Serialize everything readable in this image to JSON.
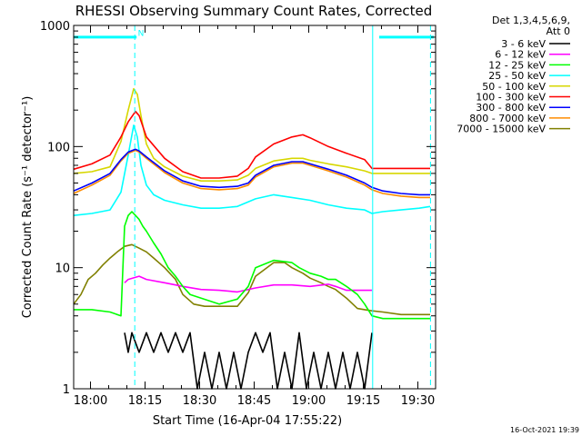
{
  "chart_data": {
    "type": "line",
    "title": "RHESSI Observing Summary Count Rates, Corrected",
    "xlabel": "Start Time (16-Apr-04 17:55:22)",
    "ylabel": "Corrected Count Rate (s⁻¹ detector⁻¹)",
    "x_unit": "minutes from 17:55:22",
    "xlim": [
      0,
      99.5
    ],
    "ylim": [
      1,
      1000
    ],
    "yscale": "log",
    "x_ticks": [
      {
        "label": "18:00",
        "x": 4.63
      },
      {
        "label": "18:15",
        "x": 19.63
      },
      {
        "label": "18:30",
        "x": 34.63
      },
      {
        "label": "18:45",
        "x": 49.63
      },
      {
        "label": "19:00",
        "x": 64.63
      },
      {
        "label": "19:15",
        "x": 79.63
      },
      {
        "label": "19:30",
        "x": 94.63
      }
    ],
    "y_ticks": [
      {
        "label": "1",
        "y": 1
      },
      {
        "label": "10",
        "y": 10
      },
      {
        "label": "100",
        "y": 100
      },
      {
        "label": "1000",
        "y": 1000
      }
    ],
    "legend": {
      "position": "right",
      "header": [
        "Det 1,3,4,5,6,9,",
        "Att 0"
      ],
      "entries": [
        {
          "label": "3 - 6 keV",
          "color": "#000000"
        },
        {
          "label": "6 - 12 keV",
          "color": "#ff00ff"
        },
        {
          "label": "12 - 25 keV",
          "color": "#00ff00"
        },
        {
          "label": "25 - 50 keV",
          "color": "#00ffff"
        },
        {
          "label": "50 - 100 keV",
          "color": "#d7d700"
        },
        {
          "label": "100 - 300 keV",
          "color": "#ff0000"
        },
        {
          "label": "300 - 800 keV",
          "color": "#0000ff"
        },
        {
          "label": "800 - 7000 keV",
          "color": "#ff8c00"
        },
        {
          "label": "7000 - 15000 keV",
          "color": "#808000"
        }
      ]
    },
    "series": [
      {
        "label": "100 - 300 keV",
        "color": "#ff0000",
        "x": [
          0,
          5,
          10,
          13,
          15,
          17,
          18,
          20,
          25,
          30,
          35,
          40,
          45,
          48,
          50,
          55,
          60,
          63,
          65,
          70,
          75,
          80,
          82,
          85,
          90,
          95,
          98
        ],
        "y": [
          65,
          72,
          85,
          120,
          160,
          195,
          180,
          120,
          80,
          62,
          55,
          55,
          57,
          66,
          82,
          105,
          120,
          125,
          118,
          100,
          88,
          78,
          66,
          66,
          66,
          66,
          66
        ]
      },
      {
        "label": "50 - 100 keV",
        "color": "#d7d700",
        "x": [
          0,
          5,
          10,
          13,
          15,
          16.5,
          17.5,
          18.5,
          20,
          22,
          25,
          30,
          35,
          40,
          45,
          48,
          50,
          55,
          60,
          63,
          65,
          70,
          75,
          80,
          82,
          85,
          90,
          95,
          98
        ],
        "y": [
          60,
          62,
          68,
          110,
          200,
          300,
          270,
          180,
          105,
          80,
          68,
          57,
          52,
          52,
          53,
          58,
          66,
          76,
          80,
          80,
          77,
          72,
          68,
          63,
          60,
          60,
          60,
          60,
          60
        ]
      },
      {
        "label": "300 - 800 keV",
        "color": "#0000ff",
        "x": [
          0,
          5,
          10,
          13,
          15,
          17,
          18,
          20,
          25,
          30,
          35,
          40,
          45,
          48,
          50,
          55,
          60,
          63,
          65,
          70,
          75,
          80,
          82,
          85,
          90,
          95,
          98
        ],
        "y": [
          43,
          50,
          60,
          78,
          90,
          95,
          92,
          82,
          63,
          52,
          47,
          46,
          47,
          50,
          58,
          70,
          75,
          75,
          72,
          65,
          58,
          50,
          46,
          43,
          41,
          40,
          40
        ]
      },
      {
        "label": "800 - 7000 keV",
        "color": "#ff8c00",
        "x": [
          0,
          5,
          10,
          13,
          15,
          17,
          18,
          20,
          25,
          30,
          35,
          40,
          45,
          48,
          50,
          55,
          60,
          63,
          65,
          70,
          75,
          80,
          82,
          85,
          90,
          95,
          98
        ],
        "y": [
          41,
          48,
          58,
          76,
          88,
          93,
          90,
          80,
          61,
          50,
          45,
          44,
          45,
          48,
          56,
          68,
          73,
          73,
          70,
          63,
          56,
          48,
          44,
          41,
          39,
          38,
          38
        ]
      },
      {
        "label": "25 - 50 keV",
        "color": "#00ffff",
        "x": [
          0,
          5,
          10,
          13,
          15,
          16.5,
          17.5,
          18.5,
          20,
          22,
          25,
          30,
          35,
          40,
          45,
          50,
          55,
          60,
          65,
          70,
          75,
          80,
          82,
          85,
          90,
          95,
          98
        ],
        "y": [
          27,
          28,
          30,
          42,
          85,
          150,
          120,
          70,
          48,
          40,
          36,
          33,
          31,
          31,
          32,
          37,
          40,
          38,
          36,
          33,
          31,
          30,
          28,
          29,
          30,
          31,
          32
        ]
      },
      {
        "label": "12 - 25 keV",
        "color": "#00ff00",
        "x": [
          0,
          5,
          10,
          13,
          14,
          15,
          16,
          17,
          18,
          19,
          20,
          22,
          24,
          26,
          28,
          30,
          32,
          40,
          45,
          48,
          50,
          55,
          60,
          62,
          65,
          68,
          70,
          72,
          75,
          78,
          80,
          82,
          85,
          90,
          95,
          98
        ],
        "y": [
          4.5,
          4.5,
          4.3,
          4,
          22,
          27,
          29,
          27,
          25,
          22,
          20,
          16,
          13,
          10,
          8.5,
          7,
          6,
          5,
          5.5,
          7,
          10,
          11.5,
          11,
          10,
          9,
          8.5,
          8,
          8,
          7,
          6,
          5,
          4,
          3.8,
          3.8,
          3.8,
          3.8
        ]
      },
      {
        "label": "6 - 12 keV",
        "color": "#ff00ff",
        "x": [
          14,
          15,
          18,
          20,
          25,
          28,
          30,
          35,
          40,
          45,
          50,
          55,
          60,
          65,
          70,
          72,
          75,
          80,
          82
        ],
        "y": [
          7.5,
          8,
          8.5,
          8,
          7.5,
          7.2,
          7,
          6.6,
          6.5,
          6.3,
          6.8,
          7.2,
          7.2,
          7,
          7.3,
          7,
          6.5,
          6.5,
          6.5
        ]
      },
      {
        "label": "7000 - 15000 keV",
        "color": "#808000",
        "x": [
          0,
          2,
          4,
          6,
          8,
          10,
          12,
          14,
          16,
          18,
          20,
          22,
          25,
          28,
          30,
          33,
          36,
          40,
          45,
          48,
          50,
          55,
          58,
          60,
          63,
          65,
          68,
          70,
          72,
          75,
          78,
          80,
          82,
          85,
          90,
          95,
          98
        ],
        "y": [
          5,
          6,
          8,
          9,
          10.5,
          12,
          13.5,
          15,
          15.5,
          14.5,
          13.5,
          12,
          10,
          8,
          6,
          5,
          4.8,
          4.8,
          4.8,
          6.2,
          8.5,
          11,
          11,
          10,
          9,
          8.2,
          7.5,
          7,
          6.6,
          5.6,
          4.6,
          4.5,
          4.4,
          4.3,
          4.1,
          4.1,
          4.1
        ]
      },
      {
        "label": "3 - 6 keV",
        "color": "#000000",
        "x": [
          14,
          15,
          16,
          18,
          20,
          22,
          24,
          26,
          28,
          30,
          32,
          34,
          36,
          38,
          40,
          42,
          44,
          46,
          48,
          50,
          52,
          54,
          56,
          58,
          60,
          62,
          64,
          66,
          68,
          70,
          72,
          74,
          76,
          78,
          80,
          82
        ],
        "y": [
          2.9,
          2,
          2.9,
          2,
          2.9,
          2,
          2.9,
          2,
          2.9,
          2,
          2.9,
          1,
          2,
          1,
          2,
          1,
          2,
          1,
          2,
          2.9,
          2,
          2.9,
          1,
          2,
          1,
          2.9,
          1,
          2,
          1,
          2,
          1,
          2,
          1,
          2,
          1,
          2.9
        ]
      }
    ],
    "annotations": [
      {
        "type": "bar",
        "color": "#00ffff",
        "x": [
          0,
          17.3
        ],
        "y": 800
      },
      {
        "type": "label",
        "text": "N",
        "color": "#00ffff",
        "x": 18.5,
        "y": 820
      },
      {
        "type": "bar",
        "color": "#00ffff",
        "x": [
          84,
          99
        ],
        "y": 800
      },
      {
        "type": "vline",
        "style": "dashed",
        "color": "#00ffff",
        "x": 16.8
      },
      {
        "type": "vline",
        "style": "solid",
        "color": "#00ffff",
        "x": 82.2
      },
      {
        "type": "vline",
        "style": "dashed",
        "color": "#00ffff",
        "x": 98.1
      }
    ],
    "grid": false
  },
  "footer": {
    "timestamp": "16-Oct-2021 19:39"
  }
}
